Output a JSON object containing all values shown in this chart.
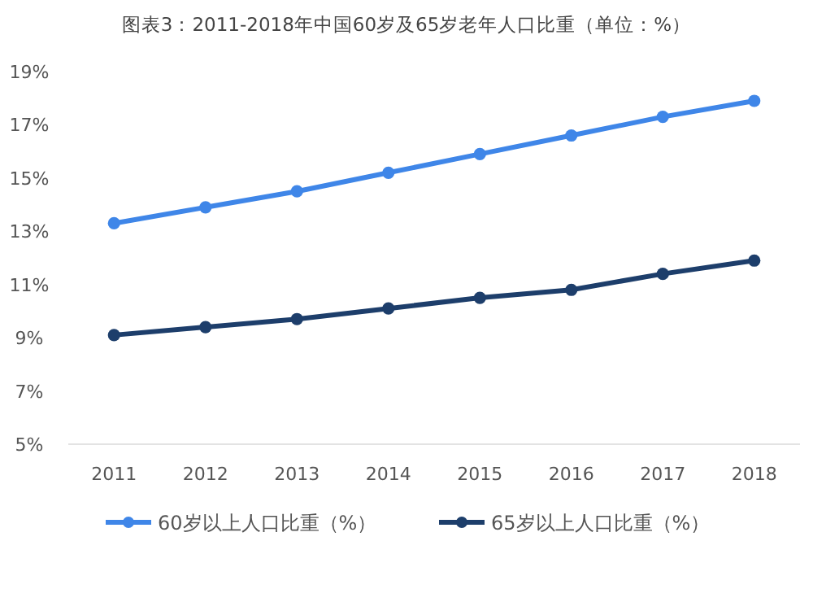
{
  "chart_data": {
    "type": "line",
    "title": "图表3：2011-2018年中国60岁及65岁老年人口比重（单位：%）",
    "categories": [
      "2011",
      "2012",
      "2013",
      "2014",
      "2015",
      "2016",
      "2017",
      "2018"
    ],
    "series": [
      {
        "name": "60岁以上人口比重（%）",
        "color": "#3f86e8",
        "values": [
          13.3,
          13.9,
          14.5,
          15.2,
          15.9,
          16.6,
          17.3,
          17.9
        ]
      },
      {
        "name": "65岁以上人口比重（%）",
        "color": "#1d3e6b",
        "values": [
          9.1,
          9.4,
          9.7,
          10.1,
          10.5,
          10.8,
          11.4,
          11.9
        ]
      }
    ],
    "ylim": [
      5,
      19
    ],
    "yticks": [
      {
        "value": 5,
        "label": "5%"
      },
      {
        "value": 7,
        "label": "7%"
      },
      {
        "value": 9,
        "label": "9%"
      },
      {
        "value": 11,
        "label": "11%"
      },
      {
        "value": 13,
        "label": "13%"
      },
      {
        "value": 15,
        "label": "15%"
      },
      {
        "value": 17,
        "label": "17%"
      },
      {
        "value": 19,
        "label": "19%"
      }
    ],
    "grid": false,
    "legend": "bottom",
    "marker": "circle",
    "line_style": "solid"
  }
}
